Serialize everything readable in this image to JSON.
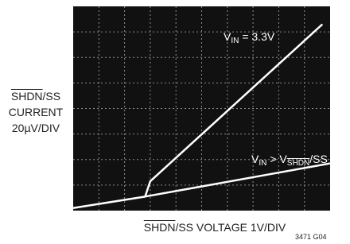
{
  "chart_data": {
    "type": "line",
    "xlim": [
      0,
      10
    ],
    "ylim": [
      0,
      8
    ],
    "grid": true,
    "background": "#111111",
    "grid_color": "#8a8a8a",
    "series": [
      {
        "color": "#ffffff",
        "x": [
          0,
          2.8,
          3.0,
          9.7
        ],
        "values": [
          0.1,
          0.55,
          1.15,
          7.3
        ]
      },
      {
        "color": "#ffffff",
        "x": [
          2.8,
          10
        ],
        "values": [
          0.55,
          1.85
        ]
      }
    ],
    "annotations": [
      [
        {
          "text": "V"
        },
        {
          "text": "IN",
          "style": "sub"
        },
        {
          "text": " = 3.3V"
        }
      ],
      [
        {
          "text": "V"
        },
        {
          "text": "IN",
          "style": "sub"
        },
        {
          "text": " > V"
        },
        {
          "text": "SHDN",
          "style": "sub-overline"
        },
        {
          "text": "/SS"
        }
      ]
    ],
    "y_label_lines": [
      [
        {
          "text": "SHDN",
          "style": "overline"
        },
        {
          "text": "/SS"
        }
      ],
      [
        {
          "text": "CURRENT"
        }
      ],
      [
        {
          "text": "20µV/DIV"
        }
      ]
    ],
    "x_label": [
      {
        "text": "SHDN",
        "style": "overline"
      },
      {
        "text": "/SS VOLTAGE 1V/DIV"
      }
    ],
    "figure_id": "3471 G04"
  }
}
